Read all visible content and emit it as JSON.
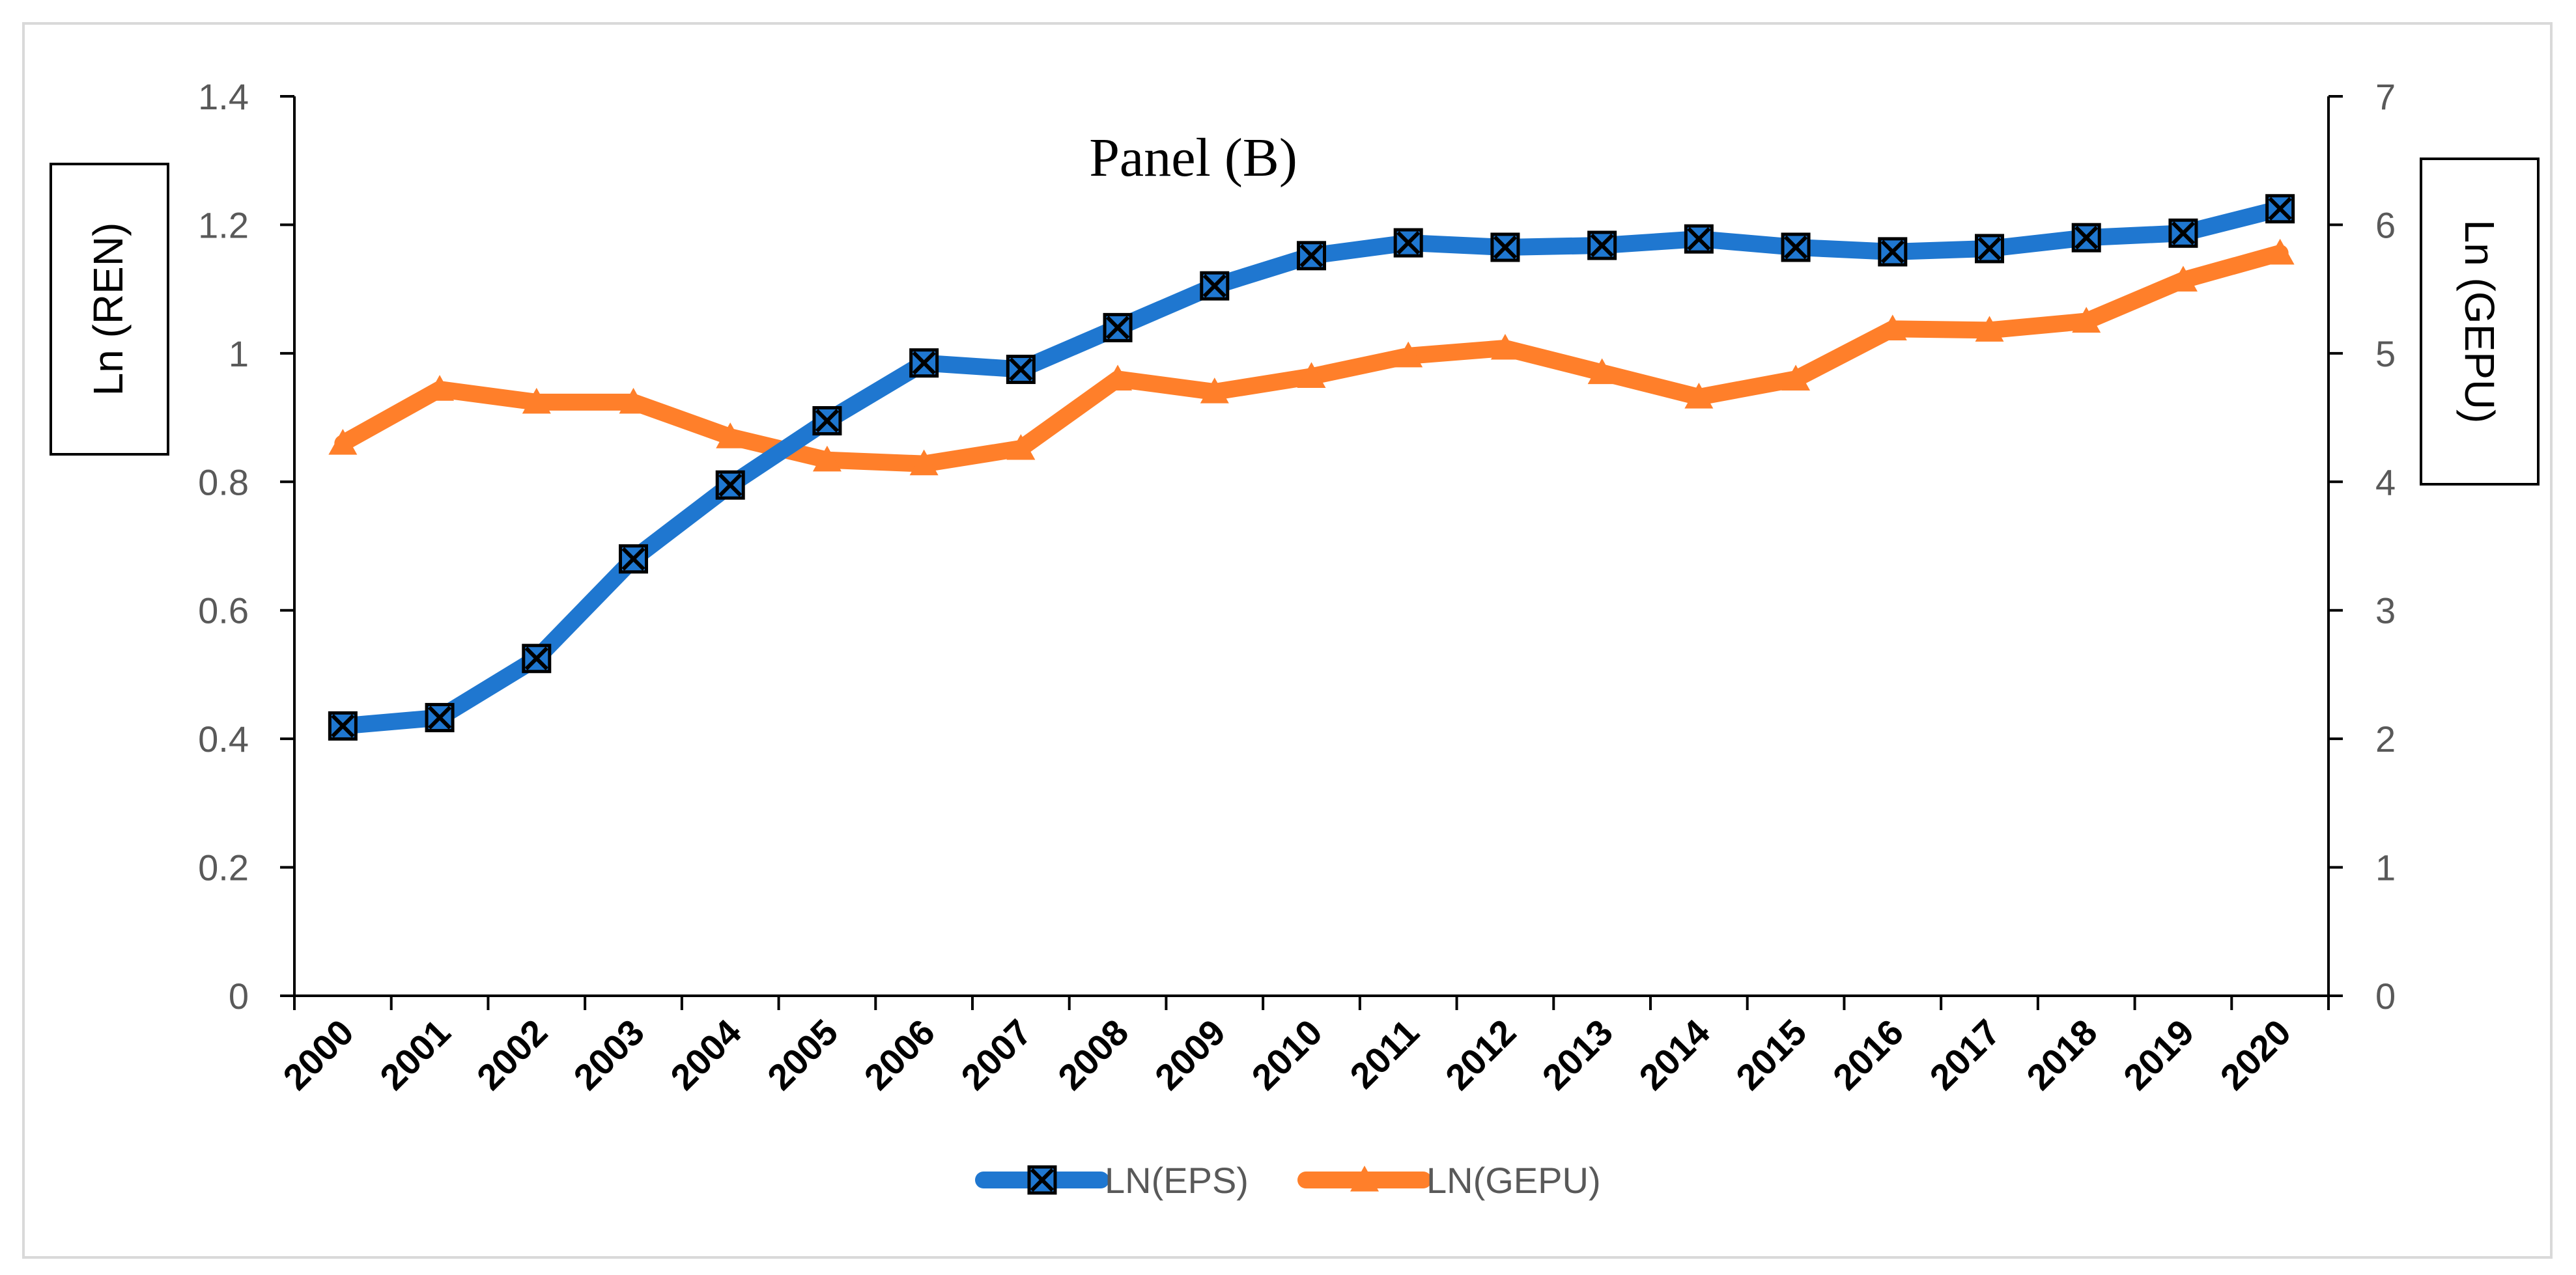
{
  "colors": {
    "eps": "#1f77d0",
    "gepu": "#ff7f2a",
    "axis": "#000000",
    "tick_text": "#595959"
  },
  "chart_data": {
    "type": "line",
    "title": "Panel (B)",
    "xlabel": "",
    "ylabel": "Ln (REN)",
    "y2label": "Ln (GEPU)",
    "ylim": [
      0,
      1.4
    ],
    "y2lim": [
      0,
      7
    ],
    "yticks": [
      "0",
      "0.2",
      "0.4",
      "0.6",
      "0.8",
      "1",
      "1.2",
      "1.4"
    ],
    "y2ticks": [
      "0",
      "1",
      "2",
      "3",
      "4",
      "5",
      "6",
      "7"
    ],
    "categories": [
      "2000",
      "2001",
      "2002",
      "2003",
      "2004",
      "2005",
      "2006",
      "2007",
      "2008",
      "2009",
      "2010",
      "2011",
      "2012",
      "2013",
      "2014",
      "2015",
      "2016",
      "2017",
      "2018",
      "2019",
      "2020"
    ],
    "series": [
      {
        "name": "LN(EPS)",
        "axis": "left",
        "marker": "x-square",
        "values": [
          0.42,
          0.433,
          0.525,
          0.68,
          0.795,
          0.895,
          0.985,
          0.975,
          1.04,
          1.105,
          1.152,
          1.172,
          1.165,
          1.168,
          1.178,
          1.165,
          1.158,
          1.163,
          1.18,
          1.187,
          1.225
        ]
      },
      {
        "name": "LN(GEPU)",
        "axis": "right",
        "marker": "triangle",
        "values": [
          4.3,
          4.72,
          4.62,
          4.62,
          4.35,
          4.17,
          4.14,
          4.26,
          4.8,
          4.7,
          4.82,
          4.98,
          5.04,
          4.85,
          4.66,
          4.8,
          5.19,
          5.18,
          5.25,
          5.57,
          5.78
        ]
      }
    ],
    "legend": "bottom-center"
  }
}
